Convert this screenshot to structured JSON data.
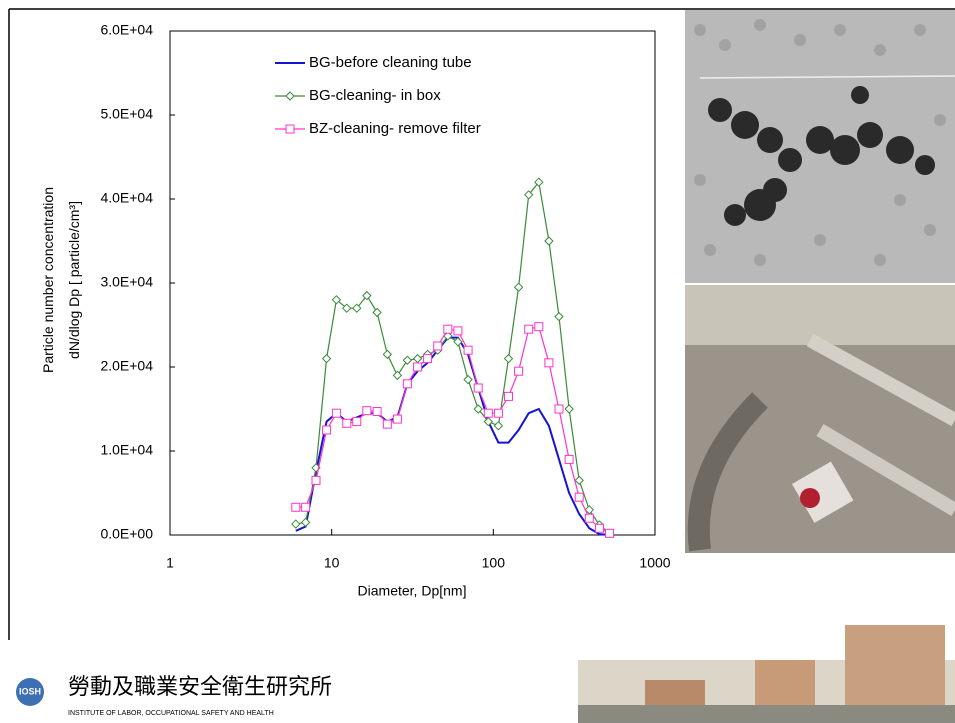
{
  "chart_data": {
    "type": "line",
    "x": [
      6.0,
      6.9,
      8.0,
      9.3,
      10.7,
      12.4,
      14.3,
      16.5,
      19.1,
      22.1,
      25.5,
      29.4,
      34.0,
      39.2,
      45.3,
      52.3,
      60.4,
      69.8,
      80.6,
      93.1,
      107.5,
      124.1,
      143.3,
      165.5,
      191.1,
      220.7,
      254.8,
      294.3,
      339.8,
      392.4,
      453.2,
      523.4
    ],
    "series": [
      {
        "name": "BG-before cleaning tube",
        "color": "#1414d2",
        "marker": "none",
        "values": [
          500,
          1000,
          7500,
          13500,
          14500,
          13500,
          14000,
          14500,
          14500,
          13500,
          14000,
          18000,
          19500,
          20500,
          22000,
          23500,
          23500,
          21500,
          17500,
          13500,
          11000,
          11000,
          12500,
          14500,
          15000,
          13000,
          9000,
          5000,
          2500,
          800,
          100,
          0
        ]
      },
      {
        "name": "BG-cleaning- in box",
        "color": "#3a8a3a",
        "marker": "diamond",
        "values": [
          1300,
          1500,
          8000,
          21000,
          28000,
          27000,
          27000,
          28500,
          26500,
          21500,
          19000,
          20800,
          21000,
          21500,
          22000,
          23700,
          23000,
          18500,
          15000,
          13500,
          13000,
          21000,
          29500,
          40500,
          42000,
          35000,
          26000,
          15000,
          6500,
          3000,
          1200,
          200
        ]
      },
      {
        "name": "BZ-cleaning- remove filter",
        "color": "#ff33cc",
        "marker": "square",
        "values": [
          3300,
          3300,
          6500,
          12500,
          14500,
          13300,
          13500,
          14800,
          14700,
          13200,
          13800,
          18000,
          20000,
          21000,
          22500,
          24500,
          24300,
          22000,
          17500,
          14500,
          14500,
          16500,
          19500,
          24500,
          24800,
          20500,
          15000,
          9000,
          4500,
          2000,
          800,
          200
        ]
      }
    ],
    "xlim": [
      1,
      1000
    ],
    "xticks": [
      1,
      10,
      100,
      1000
    ],
    "log_x": true,
    "ylim": [
      0,
      60000
    ],
    "yticks": [
      {
        "value": 0,
        "label": "0.0E+00"
      },
      {
        "value": 10000,
        "label": "1.0E+04"
      },
      {
        "value": 20000,
        "label": "2.0E+04"
      },
      {
        "value": 30000,
        "label": "3.0E+04"
      },
      {
        "value": 40000,
        "label": "4.0E+04"
      },
      {
        "value": 50000,
        "label": "5.0E+04"
      },
      {
        "value": 60000,
        "label": "6.0E+04"
      }
    ],
    "x_label": "Diameter, Dp[nm]",
    "y_label": [
      "Particle number concentration",
      "dN/dlog Dp [ particle/cm³]"
    ],
    "legend": "upper center",
    "grid": false
  },
  "footer": {
    "logo": "IOSH",
    "name_zh": "勞動及職業安全衛生研究所",
    "name_en": "INSTITUTE OF LABOR, OCCUPATIONAL SAFETY AND HEALTH"
  }
}
